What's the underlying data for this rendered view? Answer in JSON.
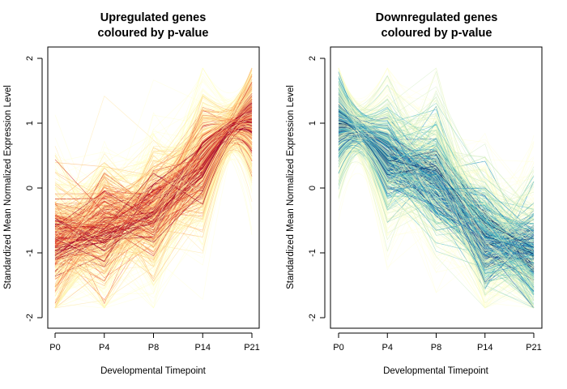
{
  "chart_data": [
    {
      "type": "line",
      "title_lines": [
        "Upregulated genes",
        "coloured by p-value"
      ],
      "xlabel": "Developmental Timepoint",
      "ylabel": "Standardized Mean Normalized Expression Level",
      "categories": [
        "P0",
        "P4",
        "P8",
        "P14",
        "P21"
      ],
      "yticks": [
        "-2",
        "-1",
        "0",
        "1",
        "2"
      ],
      "ylim": [
        -2.2,
        2.2
      ],
      "trend": [
        -0.8,
        -0.65,
        -0.35,
        0.4,
        1.05
      ],
      "hinge": {
        "x": 3.6,
        "y": 1.08
      },
      "pvalue_colors": [
        "#ffffbf",
        "#fee090",
        "#fdae61",
        "#f46d43",
        "#d73027",
        "#a50026"
      ],
      "grid": false,
      "legend": "none"
    },
    {
      "type": "line",
      "title_lines": [
        "Downregulated genes",
        "coloured by p-value"
      ],
      "xlabel": "Developmental Timepoint",
      "ylabel": "Standardized Mean Normalized Expression Level",
      "categories": [
        "P0",
        "P4",
        "P8",
        "P14",
        "P21"
      ],
      "yticks": [
        "-2",
        "-1",
        "0",
        "1",
        "2"
      ],
      "ylim": [
        -2.2,
        2.2
      ],
      "trend": [
        1.0,
        0.5,
        0.15,
        -0.75,
        -1.0
      ],
      "hinge": {
        "x": 0.4,
        "y": 0.98
      },
      "pvalue_colors": [
        "#ffffcc",
        "#c7e9b4",
        "#7fcdbb",
        "#41b6c4",
        "#1d91c0",
        "#225ea8",
        "#08306b"
      ],
      "grid": false,
      "legend": "none"
    }
  ]
}
